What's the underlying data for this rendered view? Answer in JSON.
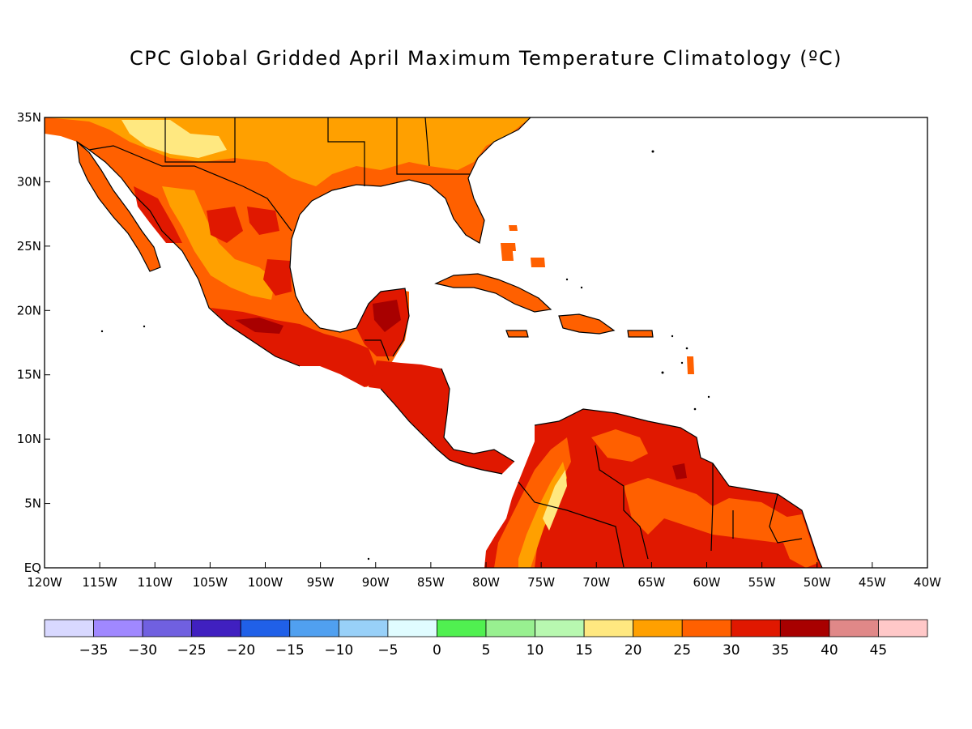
{
  "map": {
    "title": "CPC Global Gridded April Maximum Temperature Climatology (ºC)",
    "lon_range": [
      -120,
      -40
    ],
    "lat_range": [
      0,
      35
    ],
    "lon_ticks": [
      {
        "value": -120,
        "label": "120W"
      },
      {
        "value": -115,
        "label": "115W"
      },
      {
        "value": -110,
        "label": "110W"
      },
      {
        "value": -105,
        "label": "105W"
      },
      {
        "value": -100,
        "label": "100W"
      },
      {
        "value": -95,
        "label": "95W"
      },
      {
        "value": -90,
        "label": "90W"
      },
      {
        "value": -85,
        "label": "85W"
      },
      {
        "value": -80,
        "label": "80W"
      },
      {
        "value": -75,
        "label": "75W"
      },
      {
        "value": -70,
        "label": "70W"
      },
      {
        "value": -65,
        "label": "65W"
      },
      {
        "value": -60,
        "label": "60W"
      },
      {
        "value": -55,
        "label": "55W"
      },
      {
        "value": -50,
        "label": "50W"
      },
      {
        "value": -45,
        "label": "45W"
      },
      {
        "value": -40,
        "label": "40W"
      }
    ],
    "lat_ticks": [
      {
        "value": 35,
        "label": "35N"
      },
      {
        "value": 30,
        "label": "30N"
      },
      {
        "value": 25,
        "label": "25N"
      },
      {
        "value": 20,
        "label": "20N"
      },
      {
        "value": 15,
        "label": "15N"
      },
      {
        "value": 10,
        "label": "10N"
      },
      {
        "value": 5,
        "label": "5N"
      },
      {
        "value": 0,
        "label": "EQ"
      }
    ]
  },
  "colorbar": {
    "colors": [
      "#d8d8ff",
      "#a088ff",
      "#7060e0",
      "#4020c0",
      "#2060e8",
      "#50a0f0",
      "#98d0f8",
      "#e0fcff",
      "#50f050",
      "#98f090",
      "#b8f8b0",
      "#ffe880",
      "#ffa000",
      "#ff6000",
      "#e01800",
      "#a80000",
      "#e08888",
      "#ffc8c8"
    ],
    "labels": [
      "−35",
      "−30",
      "−25",
      "−20",
      "−15",
      "−10",
      "−5",
      "0",
      "5",
      "10",
      "15",
      "20",
      "25",
      "30",
      "35",
      "40",
      "45"
    ]
  }
}
